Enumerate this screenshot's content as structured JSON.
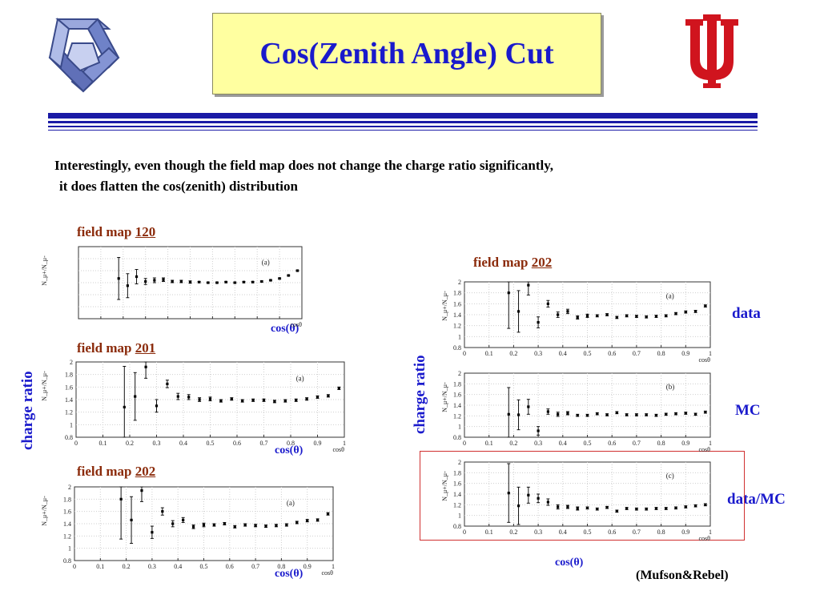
{
  "title": "Cos(Zenith Angle) Cut",
  "intro": {
    "line1": "Interestingly, even though the field map does not change the charge ratio significantly,",
    "line2": "it does flatten the cos(zenith) distribution"
  },
  "labels": {
    "field_map_prefix": "field map",
    "cos_theta": "cos(θ)",
    "charge_ratio": "charge ratio",
    "data": "data",
    "mc": "MC",
    "data_mc": "data/MC",
    "credit": "(Mufson&Rebel)"
  },
  "colors": {
    "title_bg": "#ffffa0",
    "title_text": "#1a1acc",
    "field_map_text": "#8b2b0b",
    "rule": "#1a1aa6",
    "highlight_box": "#d03030"
  },
  "chart_data": [
    {
      "id": "p120",
      "type": "scatter",
      "field_map": "120",
      "panel": "(a)",
      "y_title": "N_μ+/N_μ-",
      "x_title": "cosθ",
      "xlim": [
        0,
        1
      ],
      "ylim": [
        0.8,
        2
      ],
      "x": [
        0.18,
        0.22,
        0.26,
        0.3,
        0.34,
        0.38,
        0.42,
        0.46,
        0.5,
        0.54,
        0.58,
        0.62,
        0.66,
        0.7,
        0.74,
        0.78,
        0.82,
        0.86,
        0.9,
        0.94,
        0.98
      ],
      "y": [
        1.47,
        1.35,
        1.5,
        1.42,
        1.44,
        1.45,
        1.42,
        1.42,
        1.41,
        1.41,
        1.4,
        1.4,
        1.41,
        1.4,
        1.41,
        1.41,
        1.42,
        1.44,
        1.47,
        1.52,
        1.6
      ],
      "err": [
        0.35,
        0.2,
        0.12,
        0.05,
        0.04,
        0.03,
        0.02,
        0.02,
        0.02,
        0.01,
        0.01,
        0.01,
        0.01,
        0.01,
        0.01,
        0.01,
        0.01,
        0.01,
        0.01,
        0.01,
        0.01
      ]
    },
    {
      "id": "p201",
      "type": "scatter",
      "field_map": "201",
      "panel": "(a)",
      "y_title": "N_μ+/N_μ-",
      "x_title": "cosθ",
      "xlim": [
        0,
        1
      ],
      "ylim": [
        0.8,
        2
      ],
      "ticks_x": [
        "0",
        "0.1",
        "0.2",
        "0.3",
        "0.4",
        "0.5",
        "0.6",
        "0.7",
        "0.8",
        "0.9",
        "1"
      ],
      "ticks_y": [
        "0.8",
        "1",
        "1.2",
        "1.4",
        "1.6",
        "1.8",
        "2"
      ],
      "x": [
        0.18,
        0.22,
        0.26,
        0.3,
        0.34,
        0.38,
        0.42,
        0.46,
        0.5,
        0.54,
        0.58,
        0.62,
        0.66,
        0.7,
        0.74,
        0.78,
        0.82,
        0.86,
        0.9,
        0.94,
        0.98
      ],
      "y": [
        1.28,
        1.45,
        1.92,
        1.3,
        1.65,
        1.45,
        1.44,
        1.4,
        1.41,
        1.38,
        1.41,
        1.38,
        1.39,
        1.39,
        1.37,
        1.38,
        1.39,
        1.41,
        1.44,
        1.46,
        1.58
      ],
      "err": [
        0.65,
        0.38,
        0.18,
        0.1,
        0.06,
        0.05,
        0.04,
        0.03,
        0.03,
        0.02,
        0.02,
        0.02,
        0.02,
        0.02,
        0.02,
        0.02,
        0.02,
        0.02,
        0.02,
        0.02,
        0.02
      ]
    },
    {
      "id": "p202",
      "type": "scatter",
      "field_map": "202",
      "panel": "(a)",
      "y_title": "N_μ+/N_μ-",
      "x_title": "cosθ",
      "xlim": [
        0,
        1
      ],
      "ylim": [
        0.8,
        2
      ],
      "ticks_x": [
        "0",
        "0.1",
        "0.2",
        "0.3",
        "0.4",
        "0.5",
        "0.6",
        "0.7",
        "0.8",
        "0.9",
        "1"
      ],
      "ticks_y": [
        "0.8",
        "1",
        "1.2",
        "1.4",
        "1.6",
        "1.8",
        "2"
      ],
      "x": [
        0.18,
        0.22,
        0.26,
        0.3,
        0.34,
        0.38,
        0.42,
        0.46,
        0.5,
        0.54,
        0.58,
        0.62,
        0.66,
        0.7,
        0.74,
        0.78,
        0.82,
        0.86,
        0.9,
        0.94,
        0.98
      ],
      "y": [
        1.8,
        1.46,
        1.94,
        1.26,
        1.6,
        1.4,
        1.46,
        1.35,
        1.38,
        1.38,
        1.4,
        1.35,
        1.38,
        1.37,
        1.36,
        1.37,
        1.38,
        1.42,
        1.45,
        1.46,
        1.56
      ],
      "err": [
        0.65,
        0.38,
        0.18,
        0.1,
        0.06,
        0.05,
        0.04,
        0.03,
        0.03,
        0.02,
        0.02,
        0.02,
        0.02,
        0.02,
        0.02,
        0.02,
        0.02,
        0.02,
        0.02,
        0.02,
        0.02
      ]
    },
    {
      "id": "r202a",
      "type": "scatter",
      "field_map": "202",
      "panel": "(a)",
      "y_title": "N_μ+/N_μ-",
      "x_title": "cosθ",
      "xlim": [
        0,
        1
      ],
      "ylim": [
        0.8,
        2
      ],
      "ticks_x": [
        "0",
        "0.1",
        "0.2",
        "0.3",
        "0.4",
        "0.5",
        "0.6",
        "0.7",
        "0.8",
        "0.9",
        "1"
      ],
      "ticks_y": [
        "0.8",
        "1",
        "1.2",
        "1.4",
        "1.6",
        "1.8",
        "2"
      ],
      "x": [
        0.18,
        0.22,
        0.26,
        0.3,
        0.34,
        0.38,
        0.42,
        0.46,
        0.5,
        0.54,
        0.58,
        0.62,
        0.66,
        0.7,
        0.74,
        0.78,
        0.82,
        0.86,
        0.9,
        0.94,
        0.98
      ],
      "y": [
        1.8,
        1.46,
        1.94,
        1.26,
        1.6,
        1.4,
        1.46,
        1.35,
        1.38,
        1.38,
        1.4,
        1.35,
        1.38,
        1.37,
        1.36,
        1.37,
        1.38,
        1.42,
        1.45,
        1.46,
        1.56
      ],
      "err": [
        0.65,
        0.38,
        0.18,
        0.1,
        0.06,
        0.05,
        0.04,
        0.03,
        0.03,
        0.02,
        0.02,
        0.02,
        0.02,
        0.02,
        0.02,
        0.02,
        0.02,
        0.02,
        0.02,
        0.02,
        0.02
      ]
    },
    {
      "id": "r202b",
      "type": "scatter",
      "field_map": "202",
      "panel": "(b)",
      "y_title": "N_μ+/N_μ-",
      "x_title": "cosθ",
      "xlim": [
        0,
        1
      ],
      "ylim": [
        0.8,
        2
      ],
      "ticks_x": [
        "0",
        "0.1",
        "0.2",
        "0.3",
        "0.4",
        "0.5",
        "0.6",
        "0.7",
        "0.8",
        "0.9",
        "1"
      ],
      "ticks_y": [
        "0.8",
        "1",
        "1.2",
        "1.4",
        "1.6",
        "1.8",
        "2"
      ],
      "x": [
        0.18,
        0.22,
        0.26,
        0.3,
        0.34,
        0.38,
        0.42,
        0.46,
        0.5,
        0.54,
        0.58,
        0.62,
        0.66,
        0.7,
        0.74,
        0.78,
        0.82,
        0.86,
        0.9,
        0.94,
        0.98
      ],
      "y": [
        1.23,
        1.22,
        1.37,
        0.92,
        1.28,
        1.23,
        1.25,
        1.21,
        1.21,
        1.24,
        1.22,
        1.26,
        1.22,
        1.22,
        1.22,
        1.21,
        1.23,
        1.24,
        1.25,
        1.23,
        1.27
      ],
      "err": [
        0.5,
        0.28,
        0.14,
        0.08,
        0.05,
        0.04,
        0.03,
        0.02,
        0.02,
        0.02,
        0.02,
        0.02,
        0.02,
        0.02,
        0.02,
        0.02,
        0.02,
        0.02,
        0.02,
        0.02,
        0.02
      ]
    },
    {
      "id": "r202c",
      "type": "scatter",
      "field_map": "202",
      "panel": "(c)",
      "y_title": "N_μ+/N_μ-",
      "x_title": "cosθ",
      "xlim": [
        0,
        1
      ],
      "ylim": [
        0.8,
        2
      ],
      "ticks_x": [
        "0",
        "0.1",
        "0.2",
        "0.3",
        "0.4",
        "0.5",
        "0.6",
        "0.7",
        "0.8",
        "0.9",
        "1"
      ],
      "ticks_y": [
        "0.8",
        "1",
        "1.2",
        "1.4",
        "1.6",
        "1.8",
        "2"
      ],
      "x": [
        0.18,
        0.22,
        0.26,
        0.3,
        0.34,
        0.38,
        0.42,
        0.46,
        0.5,
        0.54,
        0.58,
        0.62,
        0.66,
        0.7,
        0.74,
        0.78,
        0.82,
        0.86,
        0.9,
        0.94,
        0.98
      ],
      "y": [
        1.42,
        1.18,
        1.38,
        1.32,
        1.25,
        1.16,
        1.16,
        1.13,
        1.14,
        1.12,
        1.15,
        1.08,
        1.13,
        1.12,
        1.12,
        1.13,
        1.13,
        1.14,
        1.16,
        1.18,
        1.2
      ],
      "err": [
        0.55,
        0.35,
        0.15,
        0.08,
        0.06,
        0.04,
        0.03,
        0.03,
        0.02,
        0.02,
        0.02,
        0.02,
        0.02,
        0.02,
        0.02,
        0.02,
        0.02,
        0.02,
        0.02,
        0.02,
        0.02
      ]
    }
  ]
}
